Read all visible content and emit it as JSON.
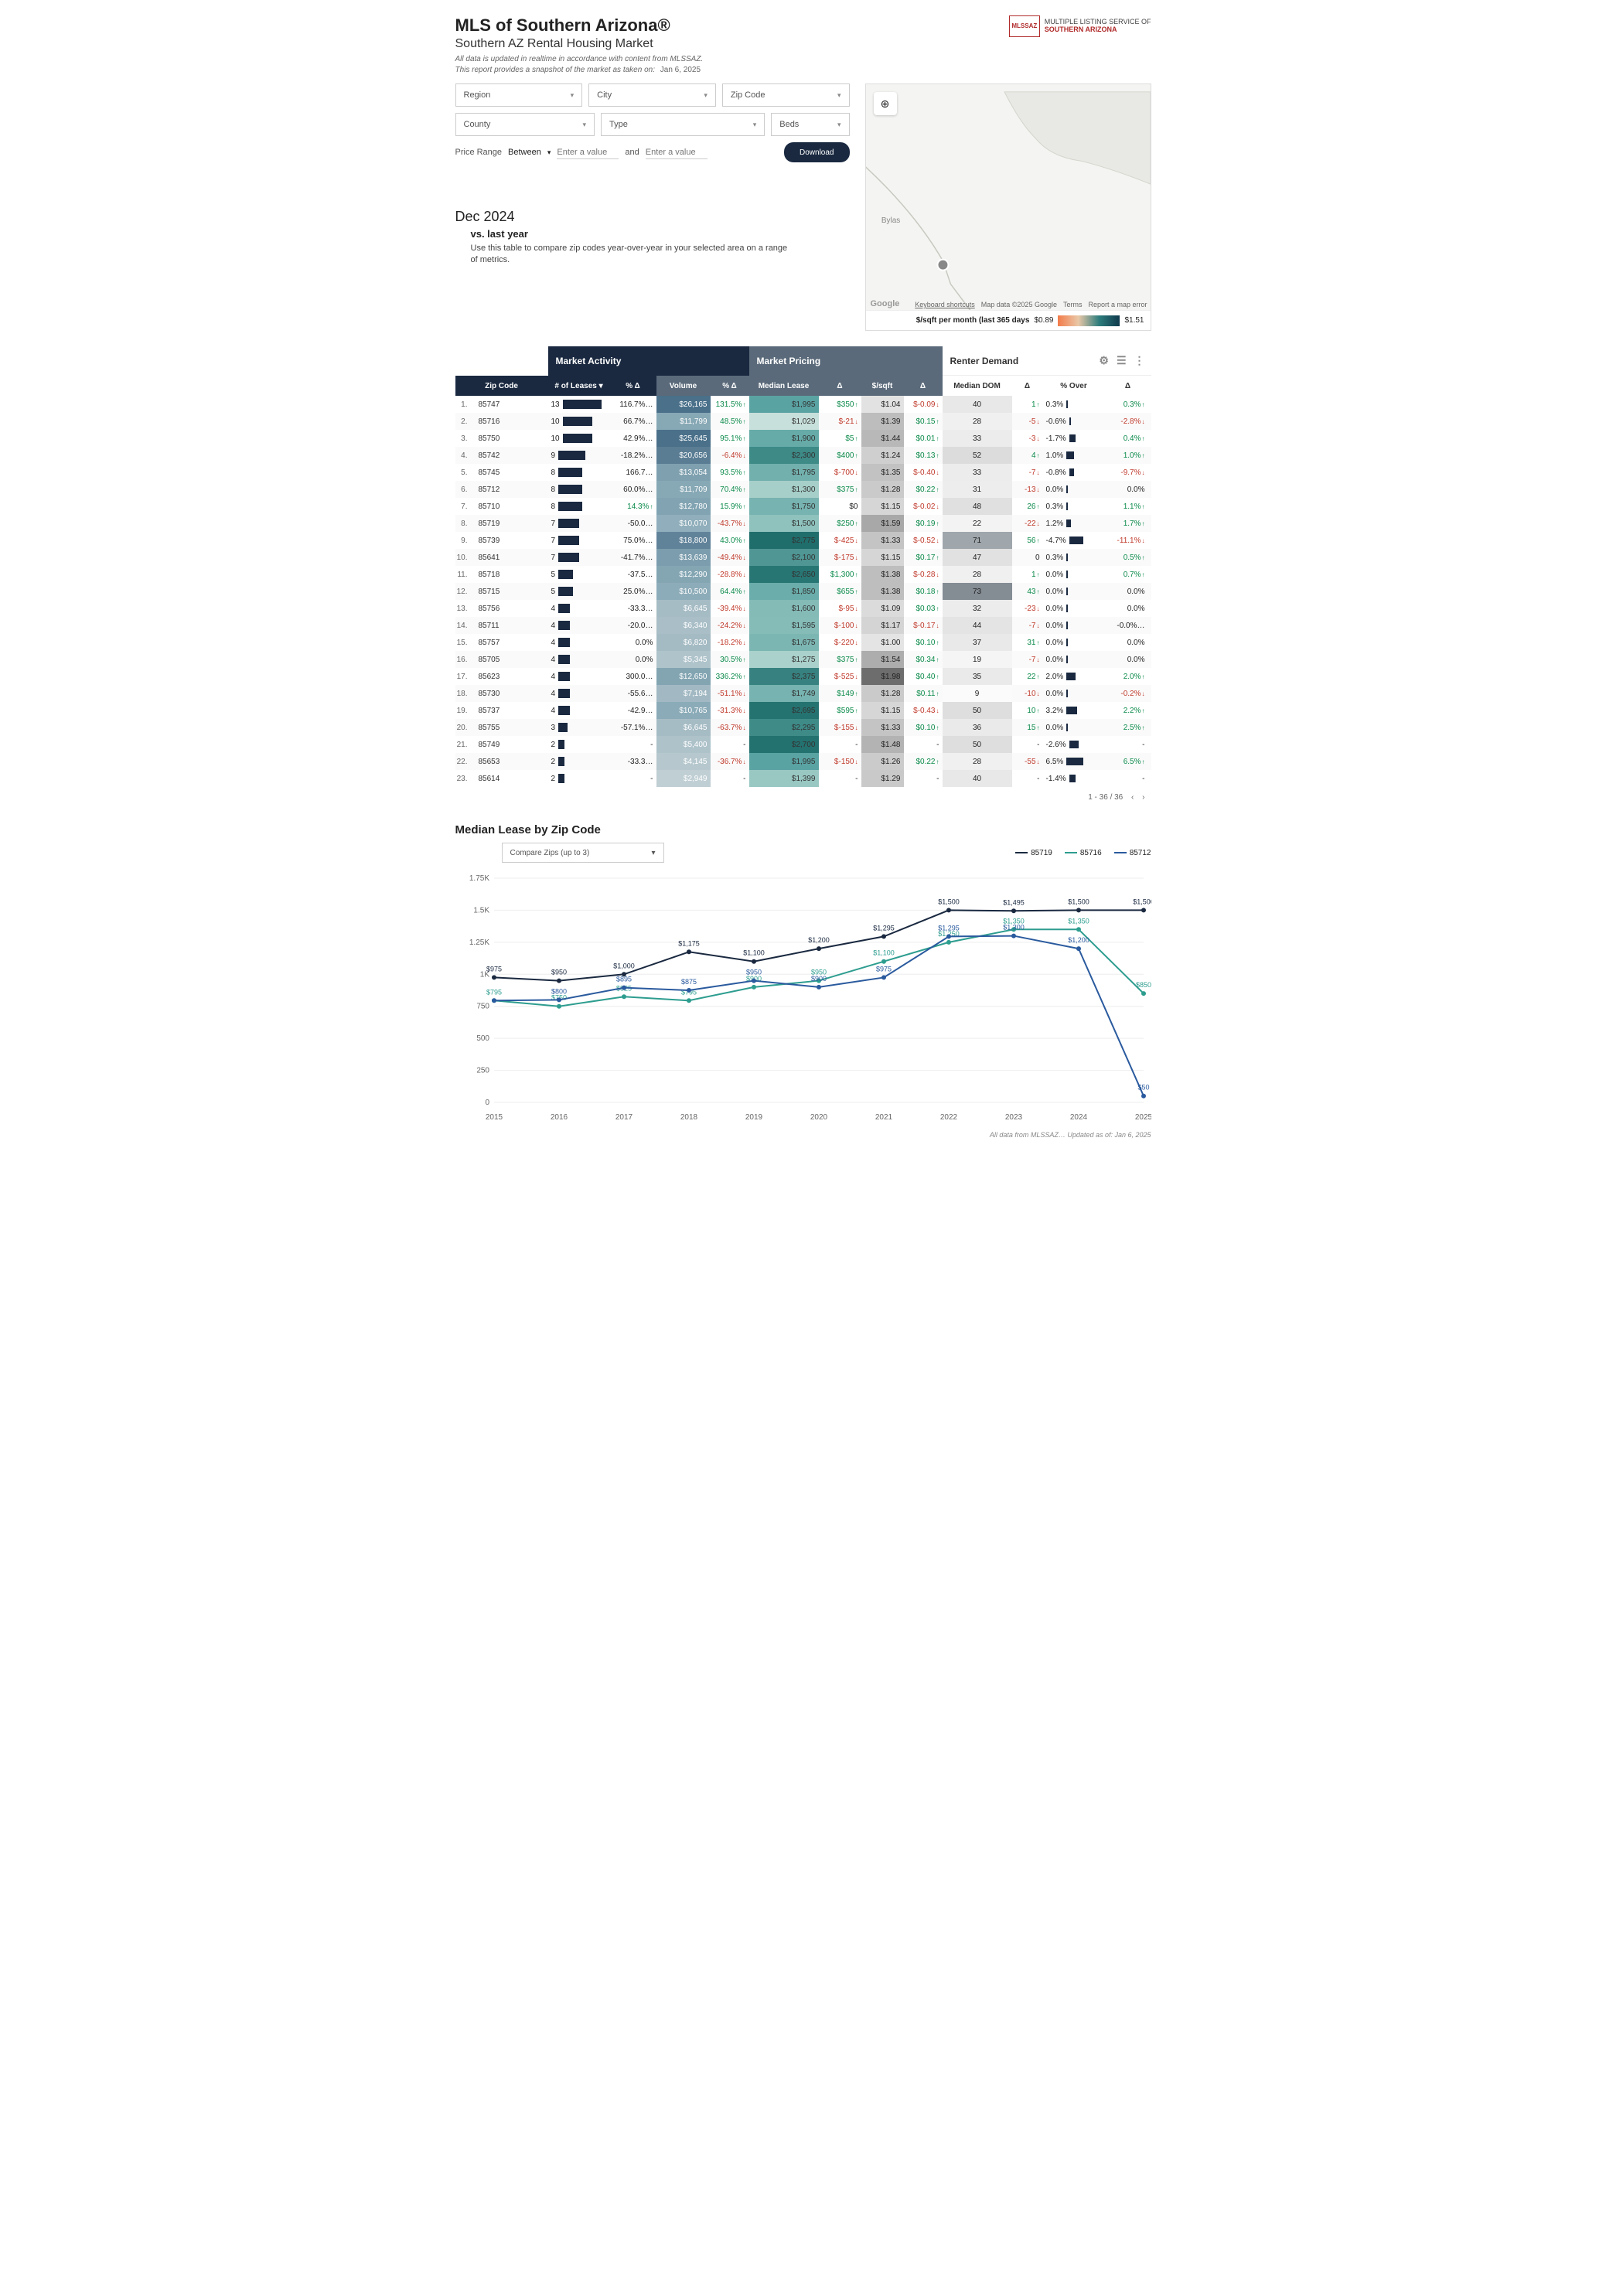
{
  "header": {
    "title": "MLS of Southern Arizona®",
    "subtitle": "Southern AZ Rental Housing Market",
    "disclaimer1": "All data is updated in realtime in accordance with content from MLSSAZ.",
    "disclaimer2": "This report provides a snapshot of the market as taken on:",
    "date": "Jan 6, 2025",
    "logo_abbr": "MLSSAZ",
    "logo_line1": "MULTIPLE LISTING SERVICE OF",
    "logo_line2": "SOUTHERN ARIZONA"
  },
  "filters": {
    "region": "Region",
    "city": "City",
    "zip": "Zip Code",
    "county": "County",
    "type": "Type",
    "beds": "Beds",
    "price_label": "Price Range",
    "between": "Between",
    "enter": "Enter a value",
    "and": "and",
    "download": "Download"
  },
  "map": {
    "label_bylas": "Bylas",
    "attrib": [
      "Keyboard shortcuts",
      "Map data ©2025 Google",
      "Terms",
      "Report a map error"
    ],
    "google": "Google",
    "legend_label": "$/sqft per month (last 365 days",
    "legend_min": "$0.89",
    "legend_max": "$1.51"
  },
  "dec": {
    "title": "Dec 2024",
    "vs": "vs. last year",
    "desc": "Use this table to compare zip codes year-over-year in your selected area on a range of metrics."
  },
  "groups": {
    "activity": "Market Activity",
    "pricing": "Market Pricing",
    "demand": "Renter Demand"
  },
  "cols": {
    "zip": "Zip Code",
    "leases": "# of Leases ▾",
    "pd": "% Δ",
    "vol": "Volume",
    "med": "Median Lease",
    "d": "Δ",
    "sqft": "$/sqft",
    "dom": "Median DOM",
    "over": "% Over"
  },
  "rows": [
    {
      "i": 1,
      "zip": "85747",
      "leases": 13,
      "pd1": "116.7%…",
      "vol": "$26,165",
      "volc": "#4a708a",
      "pd2": "131.5% ↑",
      "med": "$1,995",
      "medc": "#5aa3a3",
      "d1": "$350 ↑",
      "sqft": "$1.04",
      "sqftc": "#e2e2e2",
      "d2": "$-0.09 ↓",
      "dom": "40",
      "domc": "#e8e8e8",
      "d3": "1 ↑",
      "over": "0.3%",
      "overw": 2,
      "d4": "0.3% ↑"
    },
    {
      "i": 2,
      "zip": "85716",
      "leases": 10,
      "pd1": "66.7%…",
      "vol": "$11,799",
      "volc": "#87a8b5",
      "pd2": "48.5% ↑",
      "med": "$1,029",
      "medc": "#c8e0db",
      "d1": "$-21 ↓",
      "sqft": "$1.39",
      "sqftc": "#bdbdbd",
      "d2": "$0.15 ↑",
      "dom": "28",
      "domc": "#f0f0f0",
      "d3": "-5 ↓",
      "over": "-0.6%",
      "overw": 2,
      "d4": "-2.8% ↓"
    },
    {
      "i": 3,
      "zip": "85750",
      "leases": 10,
      "pd1": "42.9%…",
      "vol": "$25,645",
      "volc": "#4a708a",
      "pd2": "95.1% ↑",
      "med": "$1,900",
      "medc": "#66aba8",
      "d1": "$5 ↑",
      "sqft": "$1.44",
      "sqftc": "#b8b8b8",
      "d2": "$0.01 ↑",
      "dom": "33",
      "domc": "#ececec",
      "d3": "-3 ↓",
      "over": "-1.7%",
      "overw": 8,
      "d4": "0.4% ↑"
    },
    {
      "i": 4,
      "zip": "85742",
      "leases": 9,
      "pd1": "-18.2%…",
      "vol": "$20,656",
      "volc": "#5a7d94",
      "pd2": "-6.4% ↓",
      "med": "$2,300",
      "medc": "#3d8a87",
      "d1": "$400 ↑",
      "sqft": "$1.24",
      "sqftc": "#cfcfcf",
      "d2": "$0.13 ↑",
      "dom": "52",
      "domc": "#dcdcdc",
      "d3": "4 ↑",
      "over": "1.0%",
      "overw": 10,
      "d4": "1.0% ↑"
    },
    {
      "i": 5,
      "zip": "85745",
      "leases": 8,
      "pd1": "166.7…",
      "vol": "$13,054",
      "volc": "#7fa0af",
      "pd2": "93.5% ↑",
      "med": "$1,795",
      "medc": "#72b0ad",
      "d1": "$-700 ↓",
      "sqft": "$1.35",
      "sqftc": "#c2c2c2",
      "d2": "$-0.40 ↓",
      "dom": "33",
      "domc": "#ececec",
      "d3": "-7 ↓",
      "over": "-0.8%",
      "overw": 6,
      "d4": "-9.7% ↓"
    },
    {
      "i": 6,
      "zip": "85712",
      "leases": 8,
      "pd1": "60.0%…",
      "vol": "$11,709",
      "volc": "#87a8b5",
      "pd2": "70.4% ↑",
      "med": "$1,300",
      "medc": "#a6cfc9",
      "d1": "$375 ↑",
      "sqft": "$1.28",
      "sqftc": "#cacaca",
      "d2": "$0.22 ↑",
      "dom": "31",
      "domc": "#ededed",
      "d3": "-13 ↓",
      "over": "0.0%",
      "overw": 2,
      "d4": "0.0%"
    },
    {
      "i": 7,
      "zip": "85710",
      "leases": 8,
      "pd1": "14.3% ↑",
      "vol": "$12,780",
      "volc": "#82a4b2",
      "pd2": "15.9% ↑",
      "med": "$1,750",
      "medc": "#77b3b0",
      "d1": "$0",
      "sqft": "$1.15",
      "sqftc": "#d6d6d6",
      "d2": "$-0.02 ↓",
      "dom": "48",
      "domc": "#e0e0e0",
      "d3": "26 ↑",
      "over": "0.3%",
      "overw": 2,
      "d4": "1.1% ↑"
    },
    {
      "i": 8,
      "zip": "85719",
      "leases": 7,
      "pd1": "-50.0…",
      "vol": "$10,070",
      "volc": "#90aebb",
      "pd2": "-43.7% ↓",
      "med": "$1,500",
      "medc": "#8fc2bd",
      "d1": "$250 ↑",
      "sqft": "$1.59",
      "sqftc": "#a8a8a8",
      "d2": "$0.19 ↑",
      "dom": "22",
      "domc": "#f3f3f3",
      "d3": "-22 ↓",
      "over": "1.2%",
      "overw": 6,
      "d4": "1.7% ↑"
    },
    {
      "i": 9,
      "zip": "85739",
      "leases": 7,
      "pd1": "75.0%…",
      "vol": "$18,800",
      "volc": "#61839a",
      "pd2": "43.0% ↑",
      "med": "$2,775",
      "medc": "#1f6e6c",
      "d1": "$-425 ↓",
      "sqft": "$1.33",
      "sqftc": "#c4c4c4",
      "d2": "$-0.52 ↓",
      "dom": "71",
      "domc": "#9fa6ac",
      "d3": "56 ↑",
      "over": "-4.7%",
      "overw": 18,
      "d4": "-11.1% ↓"
    },
    {
      "i": 10,
      "zip": "85641",
      "leases": 7,
      "pd1": "-41.7%…",
      "vol": "$13,639",
      "volc": "#7c9dad",
      "pd2": "-49.4% ↓",
      "med": "$2,100",
      "medc": "#4f9694",
      "d1": "$-175 ↓",
      "sqft": "$1.15",
      "sqftc": "#d6d6d6",
      "d2": "$0.17 ↑",
      "dom": "47",
      "domc": "#e1e1e1",
      "d3": "0",
      "over": "0.3%",
      "overw": 2,
      "d4": "0.5% ↑"
    },
    {
      "i": 11,
      "zip": "85718",
      "leases": 5,
      "pd1": "-37.5…",
      "vol": "$12,290",
      "volc": "#84a6b3",
      "pd2": "-28.8% ↓",
      "med": "$2,650",
      "medc": "#287674",
      "d1": "$1,300 ↑",
      "sqft": "$1.38",
      "sqftc": "#bebebe",
      "d2": "$-0.28 ↓",
      "dom": "28",
      "domc": "#f0f0f0",
      "d3": "1 ↑",
      "over": "0.0%",
      "overw": 2,
      "d4": "0.7% ↑"
    },
    {
      "i": 12,
      "zip": "85715",
      "leases": 5,
      "pd1": "25.0%…",
      "vol": "$10,500",
      "volc": "#8dacb9",
      "pd2": "64.4% ↑",
      "med": "$1,850",
      "medc": "#6aadaa",
      "d1": "$655 ↑",
      "sqft": "$1.38",
      "sqftc": "#bebebe",
      "d2": "$0.18 ↑",
      "dom": "73",
      "domc": "#848c94",
      "d3": "43 ↑",
      "over": "0.0%",
      "overw": 2,
      "d4": "0.0%"
    },
    {
      "i": 13,
      "zip": "85756",
      "leases": 4,
      "pd1": "-33.3…",
      "vol": "$6,645",
      "volc": "#a6bcc5",
      "pd2": "-39.4% ↓",
      "med": "$1,600",
      "medc": "#84bbb7",
      "d1": "$-95 ↓",
      "sqft": "$1.09",
      "sqftc": "#dbdbdb",
      "d2": "$0.03 ↑",
      "dom": "32",
      "domc": "#ececec",
      "d3": "-23 ↓",
      "over": "0.0%",
      "overw": 2,
      "d4": "0.0%"
    },
    {
      "i": 14,
      "zip": "85711",
      "leases": 4,
      "pd1": "-20.0…",
      "vol": "$6,340",
      "volc": "#a9bec7",
      "pd2": "-24.2% ↓",
      "med": "$1,595",
      "medc": "#85bcb8",
      "d1": "$-100 ↓",
      "sqft": "$1.17",
      "sqftc": "#d4d4d4",
      "d2": "$-0.17 ↓",
      "dom": "44",
      "domc": "#e4e4e4",
      "d3": "-7 ↓",
      "over": "0.0%",
      "overw": 2,
      "d4": "-0.0%…"
    },
    {
      "i": 15,
      "zip": "85757",
      "leases": 4,
      "pd1": "0.0%",
      "vol": "$6,820",
      "volc": "#a5bbc4",
      "pd2": "-18.2% ↓",
      "med": "$1,675",
      "medc": "#7cb6b2",
      "d1": "$-220 ↓",
      "sqft": "$1.00",
      "sqftc": "#e4e4e4",
      "d2": "$0.10 ↑",
      "dom": "37",
      "domc": "#e9e9e9",
      "d3": "31 ↑",
      "over": "0.0%",
      "overw": 2,
      "d4": "0.0%"
    },
    {
      "i": 16,
      "zip": "85705",
      "leases": 4,
      "pd1": "0.0%",
      "vol": "$5,345",
      "volc": "#afc3cb",
      "pd2": "30.5% ↑",
      "med": "$1,275",
      "medc": "#aad1cb",
      "d1": "$375 ↑",
      "sqft": "$1.54",
      "sqftc": "#adadad",
      "d2": "$0.34 ↑",
      "dom": "19",
      "domc": "#f5f5f5",
      "d3": "-7 ↓",
      "over": "0.0%",
      "overw": 2,
      "d4": "0.0%"
    },
    {
      "i": 17,
      "zip": "85623",
      "leases": 4,
      "pd1": "300.0…",
      "vol": "$12,650",
      "volc": "#83a5b2",
      "pd2": "336.2% ↑",
      "med": "$2,375",
      "medc": "#378280",
      "d1": "$-525 ↓",
      "sqft": "$1.98",
      "sqftc": "#6d6d6d",
      "d2": "$0.40 ↑",
      "dom": "35",
      "domc": "#eaeaea",
      "d3": "22 ↑",
      "over": "2.0%",
      "overw": 12,
      "d4": "2.0% ↑"
    },
    {
      "i": 18,
      "zip": "85730",
      "leases": 4,
      "pd1": "-55.6…",
      "vol": "$7,194",
      "volc": "#a2b9c3",
      "pd2": "-51.1% ↓",
      "med": "$1,749",
      "medc": "#77b3b0",
      "d1": "$149 ↑",
      "sqft": "$1.28",
      "sqftc": "#cacaca",
      "d2": "$0.11 ↑",
      "dom": "9",
      "domc": "#fbfbfb",
      "d3": "-10 ↓",
      "over": "0.0%",
      "overw": 2,
      "d4": "-0.2% ↓"
    },
    {
      "i": 19,
      "zip": "85737",
      "leases": 4,
      "pd1": "-42.9…",
      "vol": "$10,765",
      "volc": "#8babb8",
      "pd2": "-31.3% ↓",
      "med": "$2,695",
      "medc": "#257371",
      "d1": "$595 ↑",
      "sqft": "$1.15",
      "sqftc": "#d6d6d6",
      "d2": "$-0.43 ↓",
      "dom": "50",
      "domc": "#dedede",
      "d3": "10 ↑",
      "over": "3.2%",
      "overw": 14,
      "d4": "2.2% ↑"
    },
    {
      "i": 20,
      "zip": "85755",
      "leases": 3,
      "pd1": "-57.1%…",
      "vol": "$6,645",
      "volc": "#a6bcc5",
      "pd2": "-63.7% ↓",
      "med": "$2,295",
      "medc": "#3e8b88",
      "d1": "$-155 ↓",
      "sqft": "$1.33",
      "sqftc": "#c4c4c4",
      "d2": "$0.10 ↑",
      "dom": "36",
      "domc": "#eaeaea",
      "d3": "15 ↑",
      "over": "0.0%",
      "overw": 2,
      "d4": "2.5% ↑"
    },
    {
      "i": 21,
      "zip": "85749",
      "leases": 2,
      "pd1": "-",
      "vol": "$5,400",
      "volc": "#aec2ca",
      "pd2": "-",
      "med": "$2,700",
      "medc": "#247270",
      "d1": "-",
      "sqft": "$1.48",
      "sqftc": "#b3b3b3",
      "d2": "-",
      "dom": "50",
      "domc": "#dedede",
      "d3": "-",
      "over": "-2.6%",
      "overw": 12,
      "d4": "-"
    },
    {
      "i": 22,
      "zip": "85653",
      "leases": 2,
      "pd1": "-33.3…",
      "vol": "$4,145",
      "volc": "#b6c8ce",
      "pd2": "-36.7% ↓",
      "med": "$1,995",
      "medc": "#5aa3a3",
      "d1": "$-150 ↓",
      "sqft": "$1.26",
      "sqftc": "#cbcbcb",
      "d2": "$0.22 ↑",
      "dom": "28",
      "domc": "#f0f0f0",
      "d3": "-55 ↓",
      "over": "6.5%",
      "overw": 22,
      "d4": "6.5% ↑"
    },
    {
      "i": 23,
      "zip": "85614",
      "leases": 2,
      "pd1": "-",
      "vol": "$2,949",
      "volc": "#c0cfd4",
      "pd2": "-",
      "med": "$1,399",
      "medc": "#99c8c3",
      "d1": "-",
      "sqft": "$1.29",
      "sqftc": "#c9c9c9",
      "d2": "-",
      "dom": "40",
      "domc": "#e8e8e8",
      "d3": "-",
      "over": "-1.4%",
      "overw": 8,
      "d4": "-"
    }
  ],
  "pager": {
    "range": "1 - 36 / 36"
  },
  "chart": {
    "title": "Median Lease by Zip Code",
    "dd": "Compare Zips (up to 3)",
    "series": [
      {
        "name": "85719",
        "color": "#1a2940",
        "values": [
          975,
          950,
          1000,
          1175,
          1100,
          1200,
          1295,
          1500,
          1495,
          1500,
          1500
        ]
      },
      {
        "name": "85716",
        "color": "#2d9d8f",
        "values": [
          795,
          750,
          825,
          795,
          900,
          950,
          1100,
          1250,
          1350,
          1350,
          850
        ]
      },
      {
        "name": "85712",
        "color": "#2a5a9e",
        "values": [
          795,
          800,
          895,
          875,
          950,
          900,
          975,
          1295,
          1300,
          1200,
          50
        ]
      }
    ],
    "ylabels": [
      "0",
      "250",
      "500",
      "750",
      "1K",
      "1.25K",
      "1.5K",
      "1.75K"
    ],
    "xlabels": [
      "2015",
      "2016",
      "2017",
      "2018",
      "2019",
      "2020",
      "2021",
      "2022",
      "2023",
      "2024",
      "2025"
    ],
    "point_labels": {
      "85719": [
        "$975",
        "$950",
        "$1,000",
        "$1,175",
        "$1,100",
        "$1,200",
        "$1,295",
        "$1,500",
        "$1,495",
        "$1,500",
        "$1,500"
      ],
      "85716": [
        "$795",
        "$750",
        "$825",
        "$795",
        "$900",
        "$950",
        "$1,100",
        "$1,250",
        "$1,350",
        "$1,350",
        "$850"
      ],
      "85712": [
        "",
        "$800",
        "$895",
        "$875",
        "$950",
        "$900",
        "$975",
        "$1,295",
        "$1,300",
        "$1,200",
        "$50"
      ]
    }
  },
  "footer": "All data from MLSSAZ… Updated as of:  Jan 6, 2025"
}
